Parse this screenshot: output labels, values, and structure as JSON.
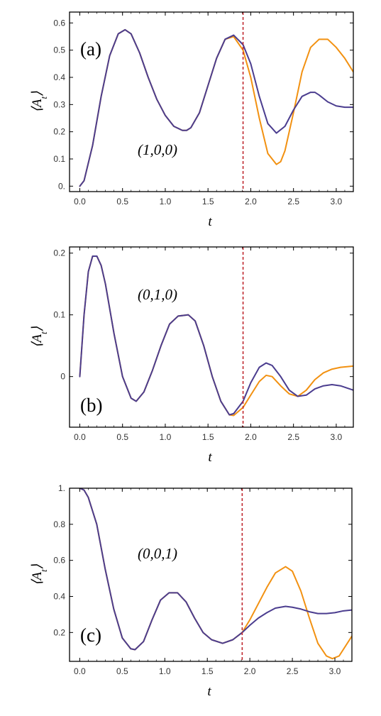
{
  "chart_data": [
    {
      "type": "line",
      "panel_label": "(a)",
      "annotation": "(1,0,0)",
      "xlabel": "t",
      "ylabel": "⟨A",
      "ylabel_sub": "t",
      "ylabel_close": "⟩",
      "xlim": [
        -0.12,
        3.2
      ],
      "ylim": [
        -0.02,
        0.64
      ],
      "xticks": [
        0.0,
        0.5,
        1.0,
        1.5,
        2.0,
        2.5,
        3.0
      ],
      "xtick_labels": [
        "0.0",
        "0.5",
        "1.0",
        "1.5",
        "2.0",
        "2.5",
        "3.0"
      ],
      "yticks": [
        0.0,
        0.1,
        0.2,
        0.3,
        0.4,
        0.5,
        0.6
      ],
      "ytick_labels": [
        "0.",
        "0.1",
        "0.2",
        "0.3",
        "0.4",
        "0.5",
        "0.6"
      ],
      "vline_x": 1.91,
      "series": [
        {
          "color": "#f29111",
          "x": [
            0.0,
            0.05,
            0.15,
            0.25,
            0.35,
            0.45,
            0.53,
            0.6,
            0.7,
            0.8,
            0.9,
            1.0,
            1.1,
            1.2,
            1.25,
            1.3,
            1.4,
            1.5,
            1.6,
            1.7,
            1.8,
            1.91,
            2.0,
            2.1,
            2.2,
            2.3,
            2.35,
            2.4,
            2.5,
            2.6,
            2.7,
            2.8,
            2.9,
            3.0,
            3.1,
            3.2
          ],
          "values": [
            0.0,
            0.02,
            0.15,
            0.33,
            0.48,
            0.56,
            0.575,
            0.56,
            0.49,
            0.4,
            0.32,
            0.26,
            0.22,
            0.205,
            0.205,
            0.215,
            0.27,
            0.37,
            0.47,
            0.54,
            0.55,
            0.5,
            0.4,
            0.25,
            0.12,
            0.08,
            0.09,
            0.13,
            0.27,
            0.42,
            0.51,
            0.54,
            0.54,
            0.51,
            0.47,
            0.42
          ]
        },
        {
          "color": "#4b3d8f",
          "x": [
            0.0,
            0.05,
            0.15,
            0.25,
            0.35,
            0.45,
            0.53,
            0.6,
            0.7,
            0.8,
            0.9,
            1.0,
            1.1,
            1.2,
            1.25,
            1.3,
            1.4,
            1.5,
            1.6,
            1.7,
            1.8,
            1.91,
            2.0,
            2.1,
            2.2,
            2.3,
            2.4,
            2.5,
            2.6,
            2.7,
            2.75,
            2.8,
            2.9,
            3.0,
            3.1,
            3.2
          ],
          "values": [
            0.0,
            0.02,
            0.15,
            0.33,
            0.48,
            0.56,
            0.575,
            0.56,
            0.49,
            0.4,
            0.32,
            0.26,
            0.22,
            0.205,
            0.205,
            0.215,
            0.27,
            0.37,
            0.47,
            0.54,
            0.555,
            0.52,
            0.45,
            0.33,
            0.23,
            0.195,
            0.22,
            0.28,
            0.33,
            0.345,
            0.345,
            0.335,
            0.31,
            0.295,
            0.29,
            0.29
          ]
        }
      ]
    },
    {
      "type": "line",
      "panel_label": "(b)",
      "annotation": "(0,1,0)",
      "xlabel": "t",
      "ylabel": "⟨A",
      "ylabel_sub": "t",
      "ylabel_close": "⟩",
      "xlim": [
        -0.12,
        3.2
      ],
      "ylim": [
        -0.082,
        0.21
      ],
      "xticks": [
        0.0,
        0.5,
        1.0,
        1.5,
        2.0,
        2.5,
        3.0
      ],
      "xtick_labels": [
        "0.0",
        "0.5",
        "1.0",
        "1.5",
        "2.0",
        "2.5",
        "3.0"
      ],
      "yticks": [
        0.0,
        0.1,
        0.2
      ],
      "ytick_labels": [
        "0",
        "0.1",
        "0.2"
      ],
      "vline_x": 1.91,
      "series": [
        {
          "color": "#f29111",
          "x": [
            0.0,
            0.05,
            0.1,
            0.15,
            0.2,
            0.25,
            0.3,
            0.4,
            0.5,
            0.6,
            0.66,
            0.75,
            0.85,
            0.95,
            1.05,
            1.15,
            1.27,
            1.35,
            1.45,
            1.55,
            1.65,
            1.75,
            1.8,
            1.91,
            2.0,
            2.1,
            2.18,
            2.25,
            2.35,
            2.45,
            2.55,
            2.65,
            2.75,
            2.85,
            2.95,
            3.05,
            3.2
          ],
          "values": [
            0.0,
            0.1,
            0.17,
            0.195,
            0.195,
            0.18,
            0.15,
            0.07,
            0.0,
            -0.035,
            -0.04,
            -0.025,
            0.01,
            0.05,
            0.085,
            0.098,
            0.1,
            0.09,
            0.05,
            0.0,
            -0.04,
            -0.062,
            -0.063,
            -0.05,
            -0.03,
            -0.008,
            0.002,
            0.0,
            -0.015,
            -0.028,
            -0.032,
            -0.022,
            -0.005,
            0.006,
            0.012,
            0.015,
            0.017
          ]
        },
        {
          "color": "#4b3d8f",
          "x": [
            0.0,
            0.05,
            0.1,
            0.15,
            0.2,
            0.25,
            0.3,
            0.4,
            0.5,
            0.6,
            0.66,
            0.75,
            0.85,
            0.95,
            1.05,
            1.15,
            1.27,
            1.35,
            1.45,
            1.55,
            1.65,
            1.75,
            1.8,
            1.91,
            2.0,
            2.1,
            2.18,
            2.25,
            2.35,
            2.45,
            2.55,
            2.65,
            2.75,
            2.85,
            2.95,
            3.05,
            3.2
          ],
          "values": [
            0.0,
            0.1,
            0.17,
            0.195,
            0.195,
            0.18,
            0.15,
            0.07,
            0.0,
            -0.035,
            -0.04,
            -0.025,
            0.01,
            0.05,
            0.085,
            0.098,
            0.1,
            0.09,
            0.05,
            0.0,
            -0.04,
            -0.062,
            -0.06,
            -0.04,
            -0.01,
            0.015,
            0.022,
            0.018,
            0.0,
            -0.022,
            -0.032,
            -0.03,
            -0.02,
            -0.015,
            -0.013,
            -0.015,
            -0.022
          ]
        }
      ]
    },
    {
      "type": "line",
      "panel_label": "(c)",
      "annotation": "(0,0,1)",
      "xlabel": "t",
      "ylabel": "⟨A",
      "ylabel_sub": "t",
      "ylabel_close": "⟩",
      "xlim": [
        -0.12,
        3.2
      ],
      "ylim": [
        0.04,
        1.0
      ],
      "xticks": [
        0.0,
        0.5,
        1.0,
        1.5,
        2.0,
        2.5,
        3.0
      ],
      "xtick_labels": [
        "0.0",
        "0.5",
        "1.0",
        "1.5",
        "2.0",
        "2.5",
        "3.0"
      ],
      "yticks": [
        0.2,
        0.4,
        0.6,
        0.8,
        1.0
      ],
      "ytick_labels": [
        "0.2",
        "0.4",
        "0.6",
        "0.8",
        "1."
      ],
      "vline_x": 1.91,
      "series": [
        {
          "color": "#f29111",
          "x": [
            0.0,
            0.05,
            0.1,
            0.2,
            0.3,
            0.4,
            0.5,
            0.6,
            0.65,
            0.75,
            0.85,
            0.95,
            1.05,
            1.15,
            1.25,
            1.35,
            1.45,
            1.55,
            1.68,
            1.8,
            1.91,
            2.0,
            2.1,
            2.2,
            2.3,
            2.42,
            2.5,
            2.6,
            2.7,
            2.8,
            2.9,
            2.97,
            3.05,
            3.2
          ],
          "values": [
            1.0,
            0.99,
            0.95,
            0.8,
            0.55,
            0.33,
            0.17,
            0.11,
            0.105,
            0.15,
            0.27,
            0.38,
            0.42,
            0.42,
            0.37,
            0.28,
            0.2,
            0.16,
            0.14,
            0.16,
            0.2,
            0.27,
            0.36,
            0.45,
            0.53,
            0.565,
            0.54,
            0.43,
            0.28,
            0.14,
            0.07,
            0.055,
            0.07,
            0.18
          ]
        },
        {
          "color": "#4b3d8f",
          "x": [
            0.0,
            0.05,
            0.1,
            0.2,
            0.3,
            0.4,
            0.5,
            0.6,
            0.65,
            0.75,
            0.85,
            0.95,
            1.05,
            1.15,
            1.25,
            1.35,
            1.45,
            1.55,
            1.68,
            1.8,
            1.91,
            2.0,
            2.1,
            2.2,
            2.3,
            2.42,
            2.5,
            2.6,
            2.7,
            2.8,
            2.9,
            3.0,
            3.1,
            3.2
          ],
          "values": [
            1.0,
            0.99,
            0.95,
            0.8,
            0.55,
            0.33,
            0.17,
            0.11,
            0.105,
            0.15,
            0.27,
            0.38,
            0.42,
            0.42,
            0.37,
            0.28,
            0.2,
            0.16,
            0.14,
            0.16,
            0.2,
            0.24,
            0.28,
            0.31,
            0.335,
            0.345,
            0.34,
            0.33,
            0.315,
            0.305,
            0.305,
            0.31,
            0.32,
            0.325
          ]
        }
      ]
    }
  ],
  "colors": {
    "axis": "#000000",
    "vline": "#c0282f"
  }
}
